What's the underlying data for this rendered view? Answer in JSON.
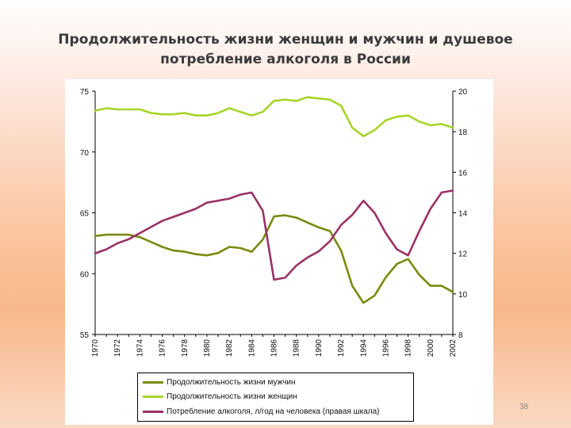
{
  "title": "Продолжительность жизни женщин и мужчин и душевое потребление алкоголя в России",
  "page_number": "38",
  "chart_data": {
    "type": "line",
    "x": [
      1970,
      1971,
      1972,
      1973,
      1974,
      1975,
      1976,
      1977,
      1978,
      1979,
      1980,
      1981,
      1982,
      1983,
      1984,
      1985,
      1986,
      1987,
      1988,
      1989,
      1990,
      1991,
      1992,
      1993,
      1994,
      1995,
      1996,
      1997,
      1998,
      1999,
      2000,
      2001,
      2002
    ],
    "x_ticks": [
      "1970",
      "1972",
      "1974",
      "1976",
      "1978",
      "1980",
      "1982",
      "1984",
      "1986",
      "1988",
      "1990",
      "1992",
      "1994",
      "1996",
      "1998",
      "2000",
      "2002"
    ],
    "y_left": {
      "range": [
        55,
        75
      ],
      "ticks": [
        "55",
        "60",
        "65",
        "70",
        "75"
      ]
    },
    "y_right": {
      "range": [
        8,
        20
      ],
      "ticks": [
        "8",
        "10",
        "12",
        "14",
        "16",
        "18",
        "20"
      ]
    },
    "grid": false,
    "legend_position": "bottom",
    "series": [
      {
        "name": "Продолжительность жизни мужчин",
        "axis": "left",
        "color": "#7a8a10",
        "values": [
          63.1,
          63.2,
          63.2,
          63.2,
          63.0,
          62.6,
          62.2,
          61.9,
          61.8,
          61.6,
          61.5,
          61.7,
          62.2,
          62.1,
          61.8,
          62.8,
          64.7,
          64.8,
          64.6,
          64.2,
          63.8,
          63.5,
          61.9,
          59.0,
          57.6,
          58.2,
          59.7,
          60.8,
          61.2,
          59.9,
          59.0,
          59.0,
          58.5
        ]
      },
      {
        "name": "Продолжительность жизни женщин",
        "axis": "left",
        "color": "#a8d42a",
        "values": [
          73.4,
          73.6,
          73.5,
          73.5,
          73.5,
          73.2,
          73.1,
          73.1,
          73.2,
          73.0,
          73.0,
          73.2,
          73.6,
          73.3,
          73.0,
          73.3,
          74.2,
          74.3,
          74.2,
          74.5,
          74.4,
          74.3,
          73.8,
          72.0,
          71.3,
          71.8,
          72.6,
          72.9,
          73.0,
          72.5,
          72.2,
          72.3,
          72.0
        ]
      },
      {
        "name": "Потребление алкоголя, л/год на человека (правая шкала)",
        "axis": "right",
        "color": "#993366",
        "values": [
          12.0,
          12.2,
          12.5,
          12.7,
          13.0,
          13.3,
          13.6,
          13.8,
          14.0,
          14.2,
          14.5,
          14.6,
          14.7,
          14.9,
          15.0,
          14.1,
          10.7,
          10.8,
          11.4,
          11.8,
          12.1,
          12.6,
          13.4,
          13.9,
          14.6,
          14.0,
          13.0,
          12.2,
          11.9,
          13.1,
          14.2,
          15.0,
          15.1
        ]
      }
    ]
  }
}
